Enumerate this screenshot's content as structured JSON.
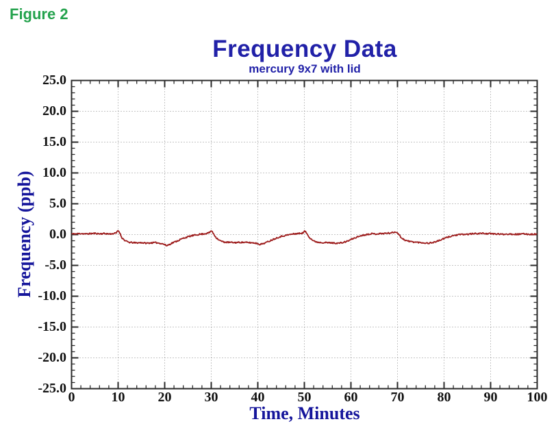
{
  "figure_label": "Figure 2",
  "colors": {
    "figure_label_green": "#23a24c",
    "title_blue": "#2121a8",
    "axis_label_blue": "#15159b",
    "tick_label_black": "#111111",
    "trace_dark_red": "#9d1c1c",
    "grid_gray": "#8a8a8a",
    "border_dark": "#2a2a2a",
    "background": "#ffffff"
  },
  "chart_data": {
    "type": "line",
    "title": "Frequency Data",
    "subtitle": "mercury 9x7 with lid",
    "xlabel": "Time, Minutes",
    "ylabel": "Frequency (ppb)",
    "xlim": [
      0,
      100
    ],
    "ylim": [
      -25,
      25
    ],
    "x_major_step": 10,
    "x_minor_step": 2,
    "y_major_step": 5,
    "y_minor_step": 1,
    "grid": "dotted gridlines at every major tick, both axes; ticks inward on all four borders; legend none",
    "x_ticks": [
      {
        "v": 0,
        "label": "0"
      },
      {
        "v": 10,
        "label": "10"
      },
      {
        "v": 20,
        "label": "20"
      },
      {
        "v": 30,
        "label": "30"
      },
      {
        "v": 40,
        "label": "40"
      },
      {
        "v": 50,
        "label": "50"
      },
      {
        "v": 60,
        "label": "60"
      },
      {
        "v": 70,
        "label": "70"
      },
      {
        "v": 80,
        "label": "80"
      },
      {
        "v": 90,
        "label": "90"
      },
      {
        "v": 100,
        "label": "100"
      }
    ],
    "y_ticks": [
      {
        "v": 25,
        "label": "25.0"
      },
      {
        "v": 20,
        "label": "20.0"
      },
      {
        "v": 15,
        "label": "15.0"
      },
      {
        "v": 10,
        "label": "10.0"
      },
      {
        "v": 5,
        "label": "5.0"
      },
      {
        "v": 0,
        "label": "0.0"
      },
      {
        "v": -5,
        "label": "-5.0"
      },
      {
        "v": -10,
        "label": "-10.0"
      },
      {
        "v": -15,
        "label": "-15.0"
      },
      {
        "v": -20,
        "label": "-20.0"
      },
      {
        "v": -25,
        "label": "-25.0"
      }
    ],
    "noise_amplitude_ppb": 0.11,
    "series": [
      {
        "name": "frequency signal",
        "color": "#9d1c1c",
        "anchors": [
          [
            0,
            0.1
          ],
          [
            1,
            0.12
          ],
          [
            2,
            0.18
          ],
          [
            3,
            0.1
          ],
          [
            4,
            0.15
          ],
          [
            5,
            0.2
          ],
          [
            6,
            0.12
          ],
          [
            7,
            0.18
          ],
          [
            8,
            0.1
          ],
          [
            9,
            0.15
          ],
          [
            9.6,
            0.25
          ],
          [
            10,
            0.7
          ],
          [
            10.3,
            0.35
          ],
          [
            10.8,
            -0.5
          ],
          [
            11.5,
            -1.0
          ],
          [
            12.3,
            -1.25
          ],
          [
            13,
            -1.3
          ],
          [
            14,
            -1.35
          ],
          [
            15,
            -1.3
          ],
          [
            16,
            -1.4
          ],
          [
            17,
            -1.35
          ],
          [
            18,
            -1.3
          ],
          [
            19,
            -1.4
          ],
          [
            19.8,
            -1.55
          ],
          [
            20.4,
            -1.8
          ],
          [
            21,
            -1.6
          ],
          [
            21.8,
            -1.3
          ],
          [
            22.8,
            -1.0
          ],
          [
            23.8,
            -0.65
          ],
          [
            24.8,
            -0.4
          ],
          [
            25.8,
            -0.2
          ],
          [
            26.8,
            -0.05
          ],
          [
            27.5,
            0.05
          ],
          [
            28.3,
            0.1
          ],
          [
            29,
            0.2
          ],
          [
            29.6,
            0.3
          ],
          [
            30,
            0.65
          ],
          [
            30.4,
            0.25
          ],
          [
            31,
            -0.45
          ],
          [
            31.8,
            -0.95
          ],
          [
            32.6,
            -1.2
          ],
          [
            33.5,
            -1.25
          ],
          [
            35,
            -1.3
          ],
          [
            36.5,
            -1.25
          ],
          [
            38,
            -1.3
          ],
          [
            39.2,
            -1.35
          ],
          [
            40,
            -1.45
          ],
          [
            40.5,
            -1.6
          ],
          [
            41.2,
            -1.45
          ],
          [
            42.2,
            -1.15
          ],
          [
            43.2,
            -0.8
          ],
          [
            44.2,
            -0.5
          ],
          [
            45.2,
            -0.25
          ],
          [
            46.2,
            -0.1
          ],
          [
            47.2,
            0.05
          ],
          [
            48.2,
            0.15
          ],
          [
            49.2,
            0.2
          ],
          [
            49.8,
            0.3
          ],
          [
            50.1,
            0.6
          ],
          [
            50.5,
            0.2
          ],
          [
            51.2,
            -0.55
          ],
          [
            52,
            -1.05
          ],
          [
            53,
            -1.25
          ],
          [
            54.5,
            -1.3
          ],
          [
            56,
            -1.35
          ],
          [
            57.3,
            -1.4
          ],
          [
            58.3,
            -1.3
          ],
          [
            59.3,
            -1.05
          ],
          [
            60.3,
            -0.7
          ],
          [
            61.3,
            -0.4
          ],
          [
            62.3,
            -0.15
          ],
          [
            63.3,
            0.0
          ],
          [
            64.3,
            0.15
          ],
          [
            65.3,
            0.1
          ],
          [
            66.3,
            0.15
          ],
          [
            67.3,
            0.2
          ],
          [
            68.3,
            0.25
          ],
          [
            69.2,
            0.35
          ],
          [
            69.8,
            0.45
          ],
          [
            70.2,
            0.1
          ],
          [
            70.8,
            -0.5
          ],
          [
            71.6,
            -0.9
          ],
          [
            72.5,
            -1.1
          ],
          [
            73.5,
            -1.2
          ],
          [
            75,
            -1.3
          ],
          [
            76.5,
            -1.4
          ],
          [
            77.5,
            -1.3
          ],
          [
            78.5,
            -1.1
          ],
          [
            79.5,
            -0.8
          ],
          [
            80.5,
            -0.5
          ],
          [
            81.5,
            -0.25
          ],
          [
            82.5,
            -0.1
          ],
          [
            83.5,
            0.0
          ],
          [
            85,
            0.05
          ],
          [
            86.5,
            0.15
          ],
          [
            88,
            0.2
          ],
          [
            89.5,
            0.15
          ],
          [
            91,
            0.1
          ],
          [
            92.5,
            0.05
          ],
          [
            94,
            0.1
          ],
          [
            95.5,
            0.05
          ],
          [
            97,
            0.1
          ],
          [
            98.5,
            0.05
          ],
          [
            100,
            0.08
          ]
        ]
      }
    ]
  }
}
